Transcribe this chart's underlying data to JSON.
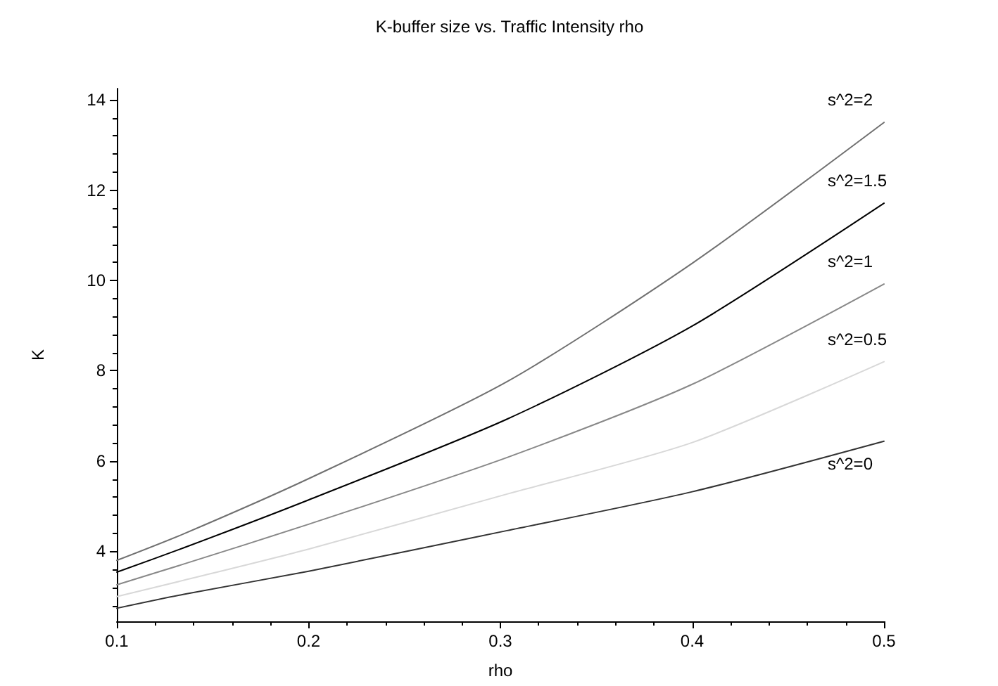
{
  "chart_data": {
    "type": "line",
    "title": "K-buffer size vs. Traffic Intensity rho",
    "xlabel": "rho",
    "ylabel": "K",
    "x": [
      0.1,
      0.135,
      0.2,
      0.3035,
      0.4,
      0.5
    ],
    "series": [
      {
        "name": "s^2=2",
        "color": "#707070",
        "values": [
          3.8,
          4.39,
          5.61,
          7.76,
          10.38,
          13.5
        ]
      },
      {
        "name": "s^2=1.5",
        "color": "#000000",
        "values": [
          3.54,
          4.08,
          5.14,
          6.93,
          8.99,
          11.71
        ]
      },
      {
        "name": "s^2=1",
        "color": "#888888",
        "values": [
          3.26,
          3.72,
          4.6,
          6.08,
          7.7,
          9.92
        ]
      },
      {
        "name": "s^2=0.5",
        "color": "#d8d8d8",
        "values": [
          3.0,
          3.36,
          4.05,
          5.27,
          6.41,
          8.2
        ]
      },
      {
        "name": "s^2=0",
        "color": "#333333",
        "values": [
          2.74,
          3.05,
          3.56,
          4.46,
          5.32,
          6.44
        ]
      }
    ],
    "xlim": [
      0.1,
      0.5
    ],
    "xticks": [
      0.1,
      0.2,
      0.3,
      0.4,
      0.5
    ],
    "ylim": [
      2.45,
      14.25
    ],
    "yticks": [
      4,
      6,
      8,
      10,
      12,
      14
    ],
    "grid": false,
    "legend": false,
    "marker": "none",
    "line_style": "solid"
  }
}
